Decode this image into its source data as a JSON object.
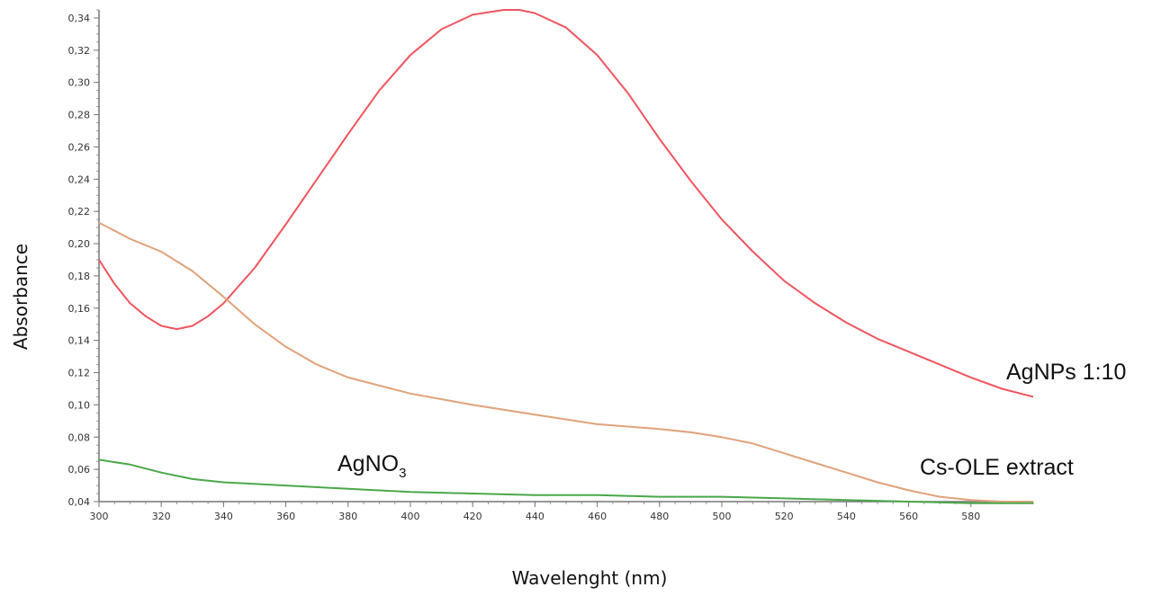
{
  "chart_data": {
    "type": "line",
    "xlabel": "Wavelenght  (nm)",
    "ylabel": "Absorbance",
    "xlim": [
      300,
      600
    ],
    "ylim": [
      0.04,
      0.345
    ],
    "x_ticks": [
      300,
      320,
      340,
      360,
      380,
      400,
      420,
      440,
      460,
      480,
      500,
      520,
      540,
      560,
      580
    ],
    "x_tick_labels": [
      "300",
      "320",
      "340",
      "360",
      "380",
      "400",
      "420",
      "440",
      "460",
      "480",
      "500",
      "520",
      "540",
      "560",
      "580"
    ],
    "y_ticks": [
      0.04,
      0.06,
      0.08,
      0.1,
      0.12,
      0.14,
      0.16,
      0.18,
      0.2,
      0.22,
      0.24,
      0.26,
      0.28,
      0.3,
      0.32,
      0.34
    ],
    "y_tick_labels": [
      "0,04",
      "0,06",
      "0,08",
      "0,10",
      "0,12",
      "0,14",
      "0,16",
      "0,18",
      "0,20",
      "0,22",
      "0,24",
      "0,26",
      "0,28",
      "0,30",
      "0,32",
      "0,34"
    ],
    "grid": false,
    "series": [
      {
        "name": "AgNPs 1:10",
        "label_main": "AgNPs 1:10",
        "label_sub": "",
        "color": "#f0555f",
        "x": [
          300,
          305,
          310,
          315,
          320,
          325,
          330,
          335,
          340,
          350,
          360,
          370,
          380,
          390,
          400,
          410,
          420,
          430,
          435,
          440,
          450,
          460,
          470,
          480,
          490,
          500,
          510,
          520,
          530,
          540,
          550,
          560,
          570,
          580,
          590,
          600
        ],
        "y": [
          0.19,
          0.175,
          0.163,
          0.155,
          0.149,
          0.147,
          0.149,
          0.155,
          0.163,
          0.185,
          0.212,
          0.24,
          0.268,
          0.295,
          0.317,
          0.333,
          0.342,
          0.345,
          0.345,
          0.343,
          0.334,
          0.317,
          0.293,
          0.265,
          0.239,
          0.215,
          0.195,
          0.177,
          0.163,
          0.151,
          0.141,
          0.133,
          0.125,
          0.117,
          0.11,
          0.105
        ]
      },
      {
        "name": "Cs-OLE extract",
        "label_main": "Cs-OLE extract",
        "label_sub": "",
        "color": "#e0a27a",
        "x": [
          300,
          310,
          320,
          330,
          340,
          350,
          360,
          370,
          380,
          400,
          420,
          440,
          460,
          480,
          490,
          500,
          510,
          520,
          530,
          540,
          550,
          560,
          570,
          580,
          590,
          600
        ],
        "y": [
          0.213,
          0.203,
          0.195,
          0.183,
          0.167,
          0.15,
          0.136,
          0.125,
          0.117,
          0.107,
          0.1,
          0.094,
          0.088,
          0.085,
          0.083,
          0.08,
          0.076,
          0.07,
          0.064,
          0.058,
          0.052,
          0.047,
          0.043,
          0.041,
          0.04,
          0.04
        ]
      },
      {
        "name": "AgNO3",
        "label_main": "AgNO",
        "label_sub": "3",
        "color": "#4aa84a",
        "x": [
          300,
          310,
          320,
          330,
          340,
          360,
          380,
          400,
          420,
          440,
          460,
          480,
          500,
          520,
          540,
          560,
          580,
          600
        ],
        "y": [
          0.066,
          0.063,
          0.058,
          0.054,
          0.052,
          0.05,
          0.048,
          0.046,
          0.045,
          0.044,
          0.044,
          0.043,
          0.043,
          0.042,
          0.041,
          0.04,
          0.039,
          0.039
        ]
      }
    ]
  }
}
